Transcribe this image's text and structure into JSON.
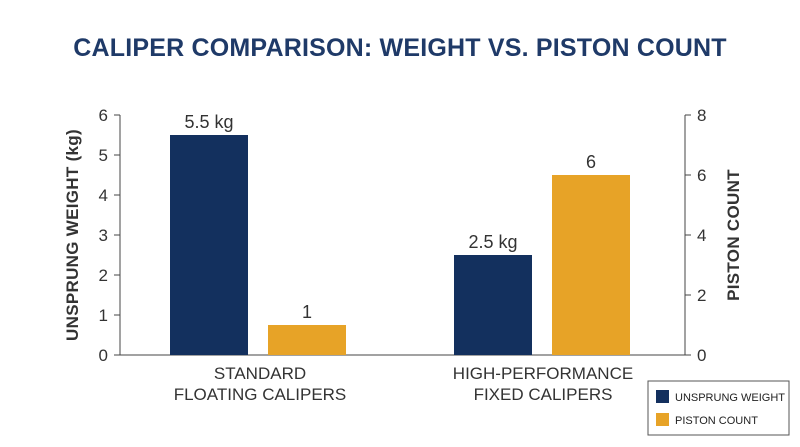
{
  "chart_data": {
    "type": "bar",
    "title": "CALIPER COMPARISON: WEIGHT VS. PISTON COUNT",
    "categories": [
      [
        "STANDARD",
        "FLOATING CALIPERS"
      ],
      [
        "HIGH-PERFORMANCE",
        "FIXED CALIPERS"
      ]
    ],
    "y_left": {
      "label": "UNSPRUNG WEIGHT (kg)",
      "range": [
        0,
        6
      ],
      "ticks": [
        "0",
        "1",
        "2",
        "3",
        "4",
        "5",
        "6"
      ]
    },
    "y_right": {
      "label": "PISTON COUNT",
      "range": [
        0,
        8
      ],
      "ticks": [
        "0",
        "2",
        "4",
        "6",
        "8"
      ]
    },
    "series": [
      {
        "name": "UNSPRUNG WEIGHT",
        "axis": "left",
        "color": "#13305e",
        "values": [
          5.5,
          2.5
        ],
        "labels": [
          "5.5 kg",
          "2.5 kg"
        ]
      },
      {
        "name": "PISTON COUNT",
        "axis": "right",
        "color": "#e7a327",
        "values": [
          1,
          6
        ],
        "labels": [
          "1",
          "6"
        ]
      }
    ],
    "grid": false,
    "legend_position": "bottom-right"
  }
}
